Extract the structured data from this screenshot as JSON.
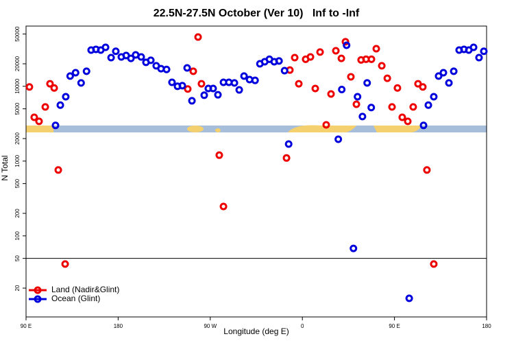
{
  "chart_data": {
    "type": "scatter",
    "title": "22.5N-27.5N October (Ver 10)   Inf to -Inf",
    "x_label": "Longitude (deg E)",
    "y_label": "N Total",
    "xlim": [
      90,
      540
    ],
    "xticks": [
      {
        "value": 90,
        "label": "90 E"
      },
      {
        "value": 180,
        "label": "180"
      },
      {
        "value": 270,
        "label": "90 W"
      },
      {
        "value": 360,
        "label": "0"
      },
      {
        "value": 450,
        "label": "90 E"
      },
      {
        "value": 540,
        "label": "180"
      }
    ],
    "ylim": [
      8.24,
      63900
    ],
    "log_y": true,
    "yticks": [
      20,
      50,
      100,
      200,
      500,
      1000,
      2000,
      5000,
      10000,
      20000,
      50000
    ],
    "hline": 50,
    "legend": "bottom-left",
    "series": [
      {
        "name": "Land (Nadir&Glint)",
        "color": "#ee0000",
        "x": [
          93.3,
          98,
          102.7,
          108.8,
          113.4,
          117.5,
          121.5,
          128.2,
          248,
          253.4,
          258.1,
          261.4,
          278.8,
          282.9,
          344.5,
          347.8,
          352.5,
          356.5,
          363.2,
          367.9,
          372.6,
          377.3,
          383.3,
          388,
          392.7,
          398.1,
          402.1,
          407.4,
          412.8,
          417.4,
          422.2,
          427.5,
          432.2,
          437.6,
          443,
          447.6,
          452.9,
          457.6,
          463,
          468.3,
          473,
          477.7,
          481.7,
          488.4
        ],
        "values": [
          9800,
          3850,
          3400,
          5300,
          10800,
          9500,
          760,
          42,
          9200,
          15900,
          45600,
          10800,
          1200,
          247,
          1100,
          16500,
          24200,
          10800,
          23000,
          24700,
          9350,
          28700,
          3050,
          7900,
          29900,
          23600,
          39400,
          13400,
          5750,
          22500,
          23000,
          23000,
          31800,
          18800,
          12800,
          5300,
          9500,
          3850,
          3400,
          5300,
          10800,
          9800,
          760,
          42
        ]
      },
      {
        "name": "Ocean (Glint)",
        "color": "#0000dd",
        "x": [
          118.8,
          123.5,
          128.8,
          133.1,
          138.4,
          143.8,
          149.1,
          153.6,
          158.3,
          163,
          167.7,
          173.1,
          177.7,
          183.1,
          187.8,
          192.5,
          197.1,
          202.5,
          207.2,
          211.9,
          217.2,
          221.9,
          227.3,
          232.6,
          238,
          242.7,
          247.4,
          252.1,
          264.1,
          268.1,
          272.8,
          277.5,
          282.9,
          288.2,
          293.6,
          298.3,
          303,
          308.4,
          313.8,
          318.5,
          323.2,
          327.8,
          332.5,
          337.2,
          342.6,
          346.6,
          395.1,
          398.5,
          403.2,
          409.9,
          413.9,
          418.7,
          423.3,
          427.3,
          464.4,
          478.4,
          483.1,
          488.4,
          493.1,
          497.8,
          503.2,
          507.9,
          513.2,
          517.9,
          522.6,
          527.3,
          532.6,
          537.3
        ],
        "values": [
          3000,
          5600,
          7250,
          13700,
          15200,
          11100,
          15900,
          30500,
          31200,
          30500,
          33200,
          24200,
          29400,
          24700,
          25800,
          23600,
          26300,
          24700,
          20900,
          22300,
          18800,
          17200,
          16800,
          11300,
          10000,
          10200,
          17600,
          6400,
          7600,
          9350,
          9350,
          7700,
          11300,
          11300,
          11100,
          8950,
          13700,
          12300,
          12000,
          20000,
          21300,
          23000,
          21300,
          21800,
          16200,
          1690,
          1960,
          9050,
          35400,
          68,
          7250,
          3940,
          11100,
          5200,
          14.6,
          3000,
          5600,
          7250,
          13700,
          15200,
          11100,
          15900,
          30500,
          31200,
          30500,
          33200,
          24200,
          29400
        ]
      }
    ]
  }
}
